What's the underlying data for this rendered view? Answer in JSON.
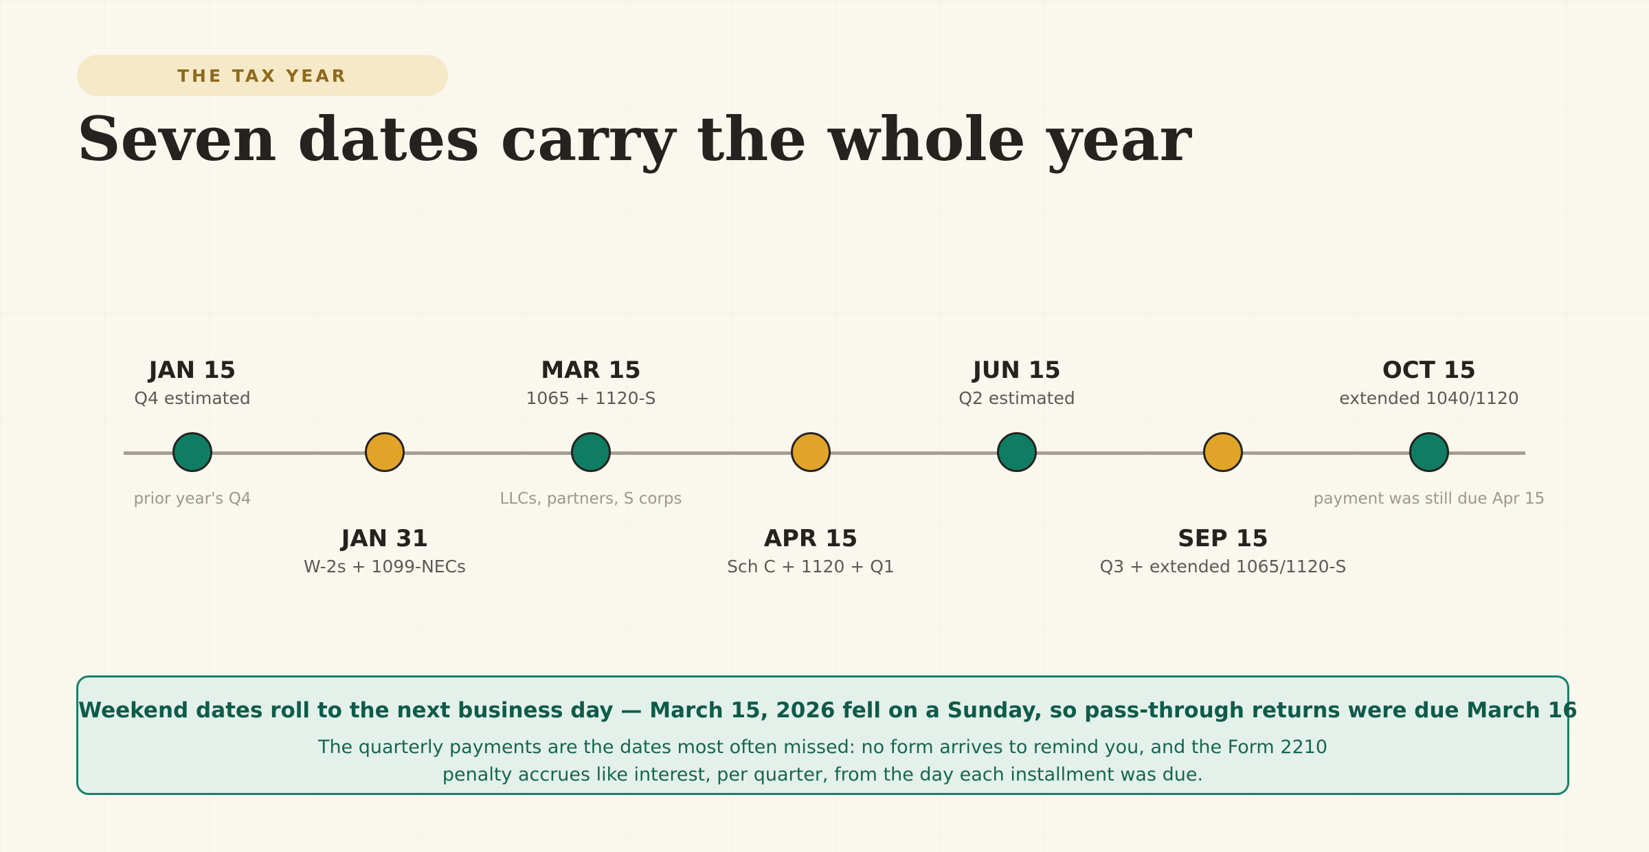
{
  "eyebrow": "THE TAX YEAR",
  "headline": "Seven dates carry the whole year",
  "colors": {
    "background": "#faf7ef",
    "eyebrow_bg": "#f6e9c8",
    "eyebrow_text": "#8e6a1c",
    "dot_green": "#0e7d63",
    "dot_amber": "#e2a428",
    "line": "#a69e92",
    "callout_bg": "#e3f1ea",
    "callout_border": "#17806a",
    "callout_text": "#0f5b4a"
  },
  "timeline": [
    {
      "date": "JAN 15",
      "label": "Q4 estimated",
      "note": "prior year's Q4",
      "color": "green",
      "position": "above"
    },
    {
      "date": "JAN 31",
      "label": "W-2s + 1099-NECs",
      "note": "",
      "color": "amber",
      "position": "below"
    },
    {
      "date": "MAR 15",
      "label": "1065 + 1120-S",
      "note": "LLCs, partners, S corps",
      "color": "green",
      "position": "above"
    },
    {
      "date": "APR 15",
      "label": "Sch C + 1120 + Q1",
      "note": "",
      "color": "amber",
      "position": "below"
    },
    {
      "date": "JUN 15",
      "label": "Q2 estimated",
      "note": "",
      "color": "green",
      "position": "above"
    },
    {
      "date": "SEP 15",
      "label": "Q3 + extended 1065/1120-S",
      "note": "",
      "color": "amber",
      "position": "below"
    },
    {
      "date": "OCT 15",
      "label": "extended 1040/1120",
      "note": "payment was still due Apr 15",
      "color": "green",
      "position": "above"
    }
  ],
  "callout": {
    "title": "Weekend dates roll to the next business day — March 15, 2026 fell on a Sunday, so pass-through returns were due March 16",
    "body": "The quarterly payments are the dates most often missed: no form arrives to remind you, and the Form 2210 penalty accrues like interest, per quarter, from the day each installment was due."
  }
}
